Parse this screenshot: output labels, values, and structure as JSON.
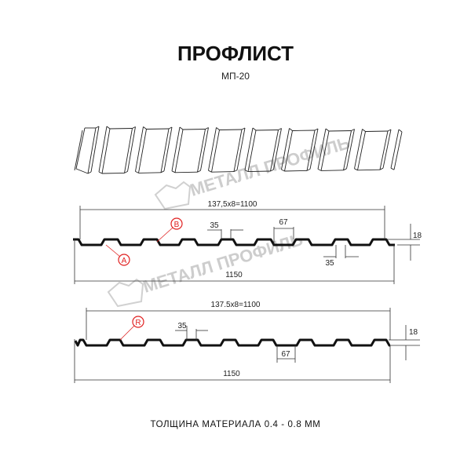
{
  "header": {
    "title": "ПРОФЛИСТ",
    "subtitle": "МП-20"
  },
  "watermark": {
    "text": "МЕТАЛЛ ПРОФИЛЬ",
    "color": "#c8c8c8"
  },
  "profile_1": {
    "pitch_label": "137,5x8=1100",
    "width_label": "1150",
    "crest_label": "35",
    "trough_label": "67",
    "height_label": "18",
    "trough_label_2": "35",
    "marker_a": "A",
    "marker_b": "B"
  },
  "profile_2": {
    "pitch_label": "137.5x8=1100",
    "width_label": "1150",
    "crest_label": "35",
    "trough_label": "67",
    "height_label": "18",
    "marker_r": "R"
  },
  "footer": {
    "thickness": "ТОЛЩИНА МАТЕРИАЛА 0.4 - 0.8 ММ"
  },
  "colors": {
    "line": "#111111",
    "marker": "#e02020",
    "dimension": "#333333"
  }
}
